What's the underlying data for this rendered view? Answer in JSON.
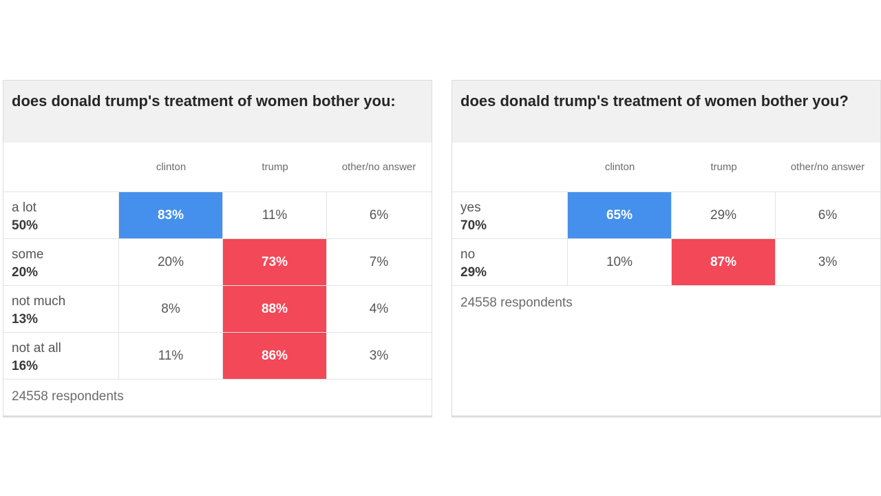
{
  "colors": {
    "clinton": "#4590ec",
    "trump": "#f24858"
  },
  "chart_data": [
    {
      "type": "table",
      "title": "does donald trump's treatment of women bother you:",
      "columns": [
        "clinton",
        "trump",
        "other/no answer"
      ],
      "rows": [
        {
          "label": "a lot",
          "share": "50%",
          "values": [
            "83%",
            "11%",
            "6%"
          ],
          "highlight": "clinton"
        },
        {
          "label": "some",
          "share": "20%",
          "values": [
            "20%",
            "73%",
            "7%"
          ],
          "highlight": "trump"
        },
        {
          "label": "not much",
          "share": "13%",
          "values": [
            "8%",
            "88%",
            "4%"
          ],
          "highlight": "trump"
        },
        {
          "label": "not at all",
          "share": "16%",
          "values": [
            "11%",
            "86%",
            "3%"
          ],
          "highlight": "trump"
        }
      ],
      "footer": "24558 respondents"
    },
    {
      "type": "table",
      "title": "does donald trump's treatment of women bother you?",
      "columns": [
        "clinton",
        "trump",
        "other/no answer"
      ],
      "rows": [
        {
          "label": "yes",
          "share": "70%",
          "values": [
            "65%",
            "29%",
            "6%"
          ],
          "highlight": "clinton"
        },
        {
          "label": "no",
          "share": "29%",
          "values": [
            "10%",
            "87%",
            "3%"
          ],
          "highlight": "trump"
        }
      ],
      "footer": "24558 respondents"
    }
  ]
}
